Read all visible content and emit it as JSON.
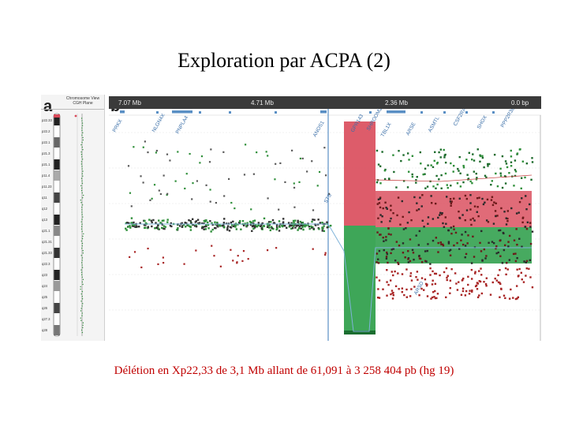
{
  "title": "Exploration par ACPA (2)",
  "figure": {
    "panel_a": {
      "letter": "a",
      "header_line1": "Chromosome View",
      "header_line2": "CGH Plane",
      "bands": [
        "p22.33",
        "p22.2",
        "p22.1",
        "p21.3",
        "p21.1",
        "p11.4",
        "p11.23",
        "q11",
        "q12",
        "q13",
        "q21.1",
        "q21.31",
        "q21.33",
        "q22.3",
        "q23",
        "q24",
        "q25",
        "q26",
        "q27.3",
        "q28"
      ]
    },
    "panel_b": {
      "letter": "b",
      "scale_labels": [
        "7.07 Mb",
        "4.71 Mb",
        "2.36 Mb",
        "0.0 bp"
      ],
      "gene_labels": [
        "PRKX",
        "NLGN4X",
        "PNPLA4",
        "ANOS1",
        "STS",
        "GPR143",
        "SHROOM2",
        "TBL1X",
        "ARSE",
        "ARSD",
        "ASMTL",
        "CSF2RA",
        "SHOX",
        "PPP2R3B"
      ],
      "colors": {
        "deletion_red": "#d94a5a",
        "deletion_green": "#2e9e4a",
        "dot_dark": "#333333",
        "dot_green": "#2f8f3a",
        "dot_red": "#a82424",
        "marker_blue": "#5a8fc4"
      }
    }
  },
  "caption": "Délétion en Xp22,33 de 3,1 Mb allant de 61,091 à 3 258 404 pb (hg 19)"
}
